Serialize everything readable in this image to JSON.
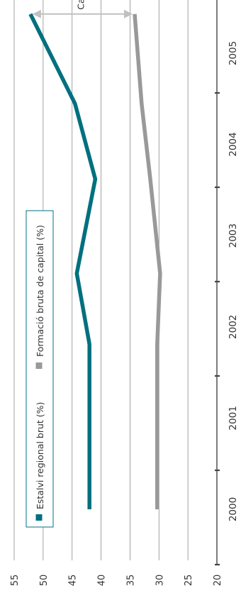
{
  "chart_data": {
    "type": "line",
    "orientation": "rotated-90-ccw",
    "x": [
      2000,
      2001,
      2001.75,
      2002.5,
      2003.5,
      2004.3,
      2005.25
    ],
    "x_tick_labels": [
      "2000",
      "2001",
      "2002",
      "2003",
      "2004",
      "2005"
    ],
    "ylim": [
      20,
      55
    ],
    "y_ticks": [
      20,
      25,
      30,
      35,
      40,
      45,
      50,
      55
    ],
    "grid": true,
    "series": [
      {
        "name": "Estalvi regional brut (%)",
        "color": "#00707f",
        "values": [
          42,
          42,
          42,
          44.2,
          41,
          44.5,
          52.2
        ]
      },
      {
        "name": "Formació bruta de capital (%)",
        "color": "#999999",
        "values": [
          30.3,
          30.3,
          30.3,
          29.8,
          31.5,
          33,
          34.2
        ]
      }
    ],
    "annotation": {
      "text": "Capacitat de finançament",
      "x": 2005.25,
      "from": 34.2,
      "to": 52.2,
      "color": "#c0c0c0"
    },
    "legend_position": "left-middle"
  }
}
